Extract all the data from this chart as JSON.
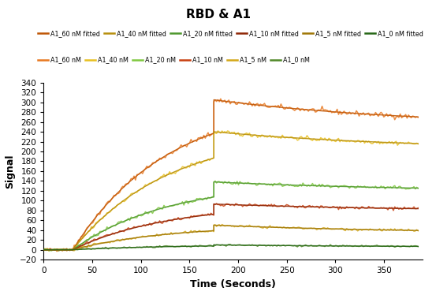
{
  "title": "RBD & A1",
  "xlabel": "Time (Seconds)",
  "ylabel": "Signal",
  "ylim": [
    -20,
    340
  ],
  "xlim": [
    0,
    390
  ],
  "yticks": [
    -20,
    0,
    20,
    40,
    60,
    80,
    100,
    120,
    140,
    160,
    180,
    200,
    220,
    240,
    260,
    280,
    300,
    320,
    340
  ],
  "xticks": [
    0,
    50,
    100,
    150,
    200,
    250,
    300,
    350
  ],
  "concentrations": [
    "60",
    "40",
    "20",
    "10",
    "5",
    "0"
  ],
  "colors": {
    "60": "#E87820",
    "40": "#E8C020",
    "20": "#80C840",
    "10": "#C84010",
    "5": "#D4A818",
    "0": "#508828"
  },
  "fitted_colors": {
    "60": "#C05808",
    "40": "#B89010",
    "20": "#509830",
    "10": "#902808",
    "5": "#A07808",
    "0": "#286818"
  },
  "association_start": 30,
  "association_end": 175,
  "dissociation_end": 385,
  "peaks": {
    "60": 305,
    "40": 240,
    "20": 138,
    "10": 93,
    "5": 50,
    "0": 10
  },
  "dissociation_end_values": {
    "60": 250,
    "40": 202,
    "20": 118,
    "10": 78,
    "5": 33,
    "0": 5
  },
  "noise_amp": {
    "60": 2.5,
    "40": 2.0,
    "20": 1.8,
    "10": 1.5,
    "5": 1.2,
    "0": 0.8
  },
  "legend_fitted_labels": [
    "A1_60 nM fitted",
    "A1_40 nM fitted",
    "A1_20 nM fitted",
    "A1_10 nM fitted",
    "A1_5 nM fitted",
    "A1_0 nM fitted"
  ],
  "legend_raw_labels": [
    "A1_60 nM",
    "A1_40 nM",
    "A1_20 nM",
    "A1_10 nM",
    "A1_5 nM",
    "A1_0 nM"
  ]
}
